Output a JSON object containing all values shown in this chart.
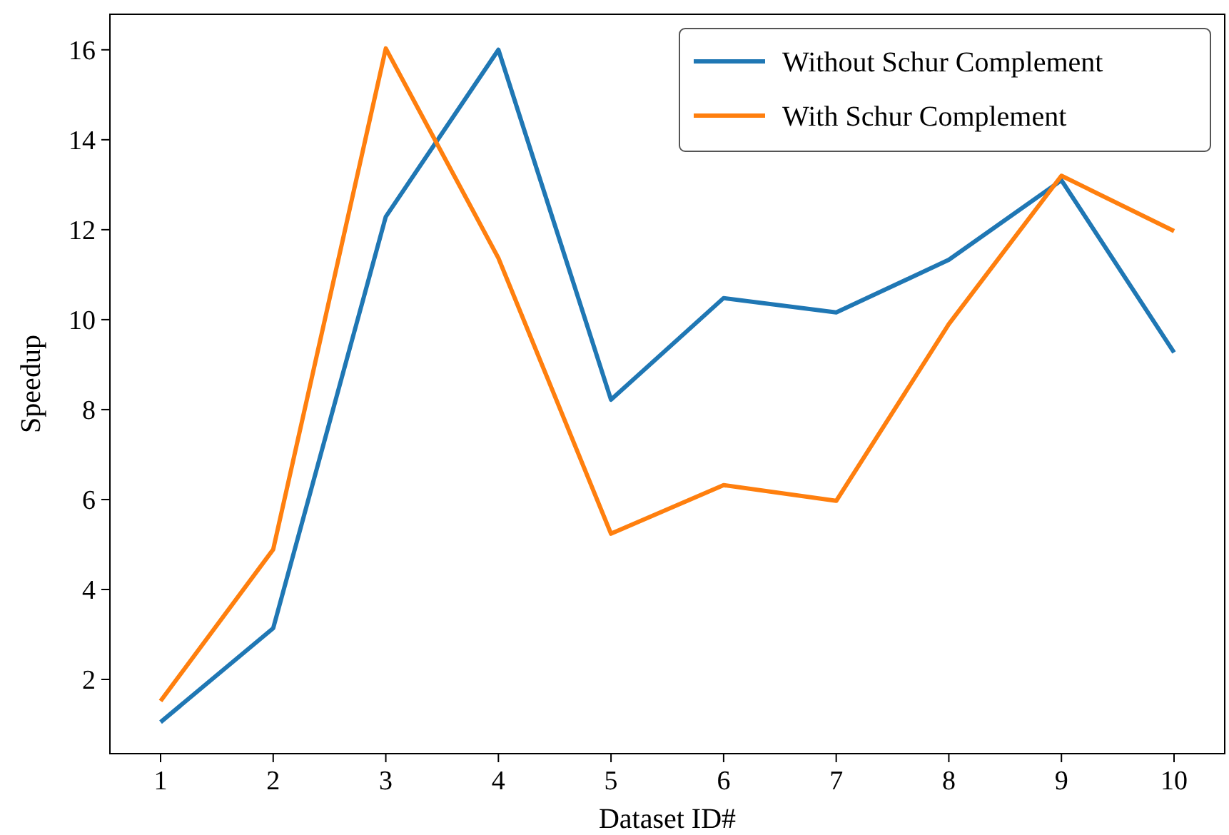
{
  "chart_data": {
    "type": "line",
    "xlabel": "Dataset ID#",
    "ylabel": "Speedup",
    "x": [
      1,
      2,
      3,
      4,
      5,
      6,
      7,
      8,
      9,
      10
    ],
    "series": [
      {
        "name": "Without Schur Complement",
        "color": "#1f77b4",
        "values": [
          1.05,
          3.14,
          12.29,
          16.0,
          8.22,
          10.48,
          10.16,
          11.33,
          13.1,
          9.27
        ]
      },
      {
        "name": "With Schur Complement",
        "color": "#ff7f0e",
        "values": [
          1.52,
          4.89,
          16.03,
          11.37,
          5.24,
          6.32,
          5.97,
          9.9,
          13.2,
          11.97
        ]
      }
    ],
    "xlim": [
      0.55,
      10.45
    ],
    "ylim": [
      0.35,
      16.79
    ],
    "xticks": [
      1,
      2,
      3,
      4,
      5,
      6,
      7,
      8,
      9,
      10
    ],
    "yticks": [
      2,
      4,
      6,
      8,
      10,
      12,
      14,
      16
    ],
    "grid": false,
    "legend": "top right",
    "marker": "none",
    "line_style": "solid"
  }
}
